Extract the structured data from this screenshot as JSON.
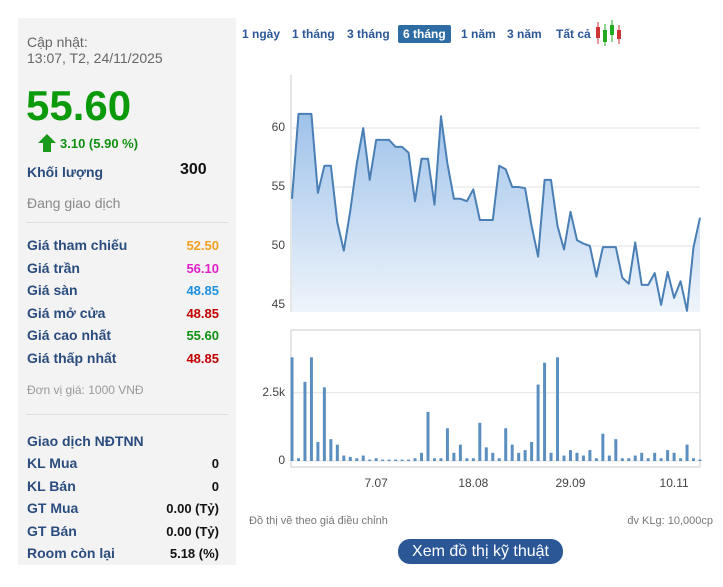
{
  "quote": {
    "updated_label": "Cập nhật:",
    "updated_time": "13:07, T2, 24/11/2025",
    "price": "55.60",
    "change": "3.10 (5.90 %)",
    "volume_label": "Khối lượng",
    "volume": "300",
    "status": "Đang giao dịch",
    "stats": [
      {
        "label": "Giá tham chiếu",
        "value": "52.50",
        "color": "#f0a020"
      },
      {
        "label": "Giá trần",
        "value": "56.10",
        "color": "#e020c8"
      },
      {
        "label": "Giá sàn",
        "value": "48.85",
        "color": "#1e90e0"
      },
      {
        "label": "Giá mở cửa",
        "value": "48.85",
        "color": "#c00000"
      },
      {
        "label": "Giá cao nhất",
        "value": "55.60",
        "color": "#109010"
      },
      {
        "label": "Giá thấp nhất",
        "value": "48.85",
        "color": "#c00000"
      }
    ],
    "unit_note": "Đơn vị giá: 1000 VNĐ",
    "foreign_title": "Giao dịch NĐTNN",
    "foreign": [
      {
        "label": "KL Mua",
        "value": "0"
      },
      {
        "label": "KL Bán",
        "value": "0"
      },
      {
        "label": "GT Mua",
        "value": "0.00 (Tỷ)"
      },
      {
        "label": "GT Bán",
        "value": "0.00 (Tỷ)"
      },
      {
        "label": "Room còn lại",
        "value": "5.18 (%)"
      }
    ]
  },
  "ranges": {
    "items": [
      "1 ngày",
      "1 tháng",
      "3 tháng",
      "6 tháng",
      "1 năm",
      "3 năm",
      "Tất cả"
    ],
    "active": 3
  },
  "chart_data": [
    {
      "type": "area",
      "color": "#4a7fb5",
      "grid": true,
      "ylim": [
        44.4,
        64.5
      ],
      "yticks": [
        45,
        50,
        55,
        60
      ],
      "values": [
        54,
        61.2,
        61.2,
        61.2,
        54.5,
        56.8,
        56.8,
        52,
        49.6,
        53,
        57,
        60,
        55.6,
        59,
        59,
        59,
        58.4,
        58.4,
        57.9,
        53.8,
        57.4,
        57.4,
        53.5,
        61,
        57,
        54,
        54,
        53.8,
        54.8,
        52.2,
        52.2,
        52.2,
        56.8,
        56.5,
        55,
        55,
        54.9,
        51.7,
        49.1,
        55.6,
        55.6,
        51.7,
        49.7,
        52.9,
        50.5,
        50.2,
        50,
        47.4,
        49.9,
        49.9,
        49.9,
        47.3,
        46.8,
        50.3,
        46.7,
        46.7,
        47.7,
        45,
        47.8,
        45.6,
        47,
        44.5,
        49.9,
        52.4
      ]
    },
    {
      "type": "bar",
      "color": "#5b8fc0",
      "grid": true,
      "ylim": [
        -220,
        4800
      ],
      "yticks": [
        0,
        {
          "value": 2500,
          "label": "2.5k"
        }
      ],
      "categories": [
        null,
        null,
        null,
        null,
        null,
        null,
        null,
        null,
        null,
        null,
        null,
        null,
        null,
        "7.07",
        null,
        null,
        null,
        null,
        null,
        null,
        null,
        null,
        null,
        null,
        null,
        null,
        null,
        null,
        "18.08",
        null,
        null,
        null,
        null,
        null,
        null,
        null,
        null,
        null,
        null,
        null,
        null,
        null,
        null,
        "29.09",
        null,
        null,
        null,
        null,
        null,
        null,
        null,
        null,
        null,
        null,
        null,
        null,
        null,
        null,
        null,
        "10.11",
        null,
        null,
        null,
        null
      ],
      "values": [
        3800,
        100,
        2900,
        3800,
        700,
        2700,
        800,
        600,
        200,
        150,
        100,
        200,
        50,
        100,
        50,
        50,
        50,
        50,
        50,
        100,
        300,
        1800,
        100,
        100,
        1200,
        300,
        600,
        100,
        100,
        1400,
        500,
        300,
        100,
        1200,
        600,
        300,
        400,
        700,
        2800,
        3600,
        300,
        3800,
        200,
        400,
        300,
        200,
        400,
        100,
        1000,
        200,
        800,
        100,
        100,
        200,
        300,
        100,
        300,
        100,
        400,
        300,
        100,
        600,
        100,
        50
      ]
    }
  ],
  "footer": {
    "note": "Đồ thị vẽ theo giá điều chỉnh",
    "unit": "đv KLg: 10,000cp",
    "button": "Xem đồ thị kỹ thuật"
  }
}
